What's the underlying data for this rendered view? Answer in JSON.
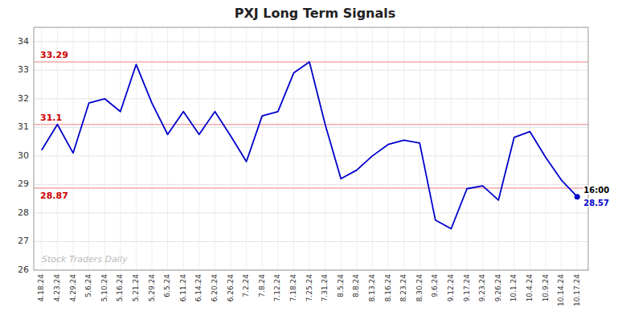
{
  "chart_data": {
    "type": "line",
    "title": "PXJ Long Term Signals",
    "categories": [
      "4.18.24",
      "4.23.24",
      "4.29.24",
      "5.6.24",
      "5.10.24",
      "5.16.24",
      "5.21.24",
      "5.29.24",
      "6.5.24",
      "6.11.24",
      "6.14.24",
      "6.20.24",
      "6.26.24",
      "7.2.24",
      "7.8.24",
      "7.12.24",
      "7.18.24",
      "7.25.24",
      "7.31.24",
      "8.5.24",
      "8.8.24",
      "8.13.24",
      "8.16.24",
      "8.23.24",
      "8.30.24",
      "9.6.24",
      "9.12.24",
      "9.17.24",
      "9.23.24",
      "9.26.24",
      "10.1.24",
      "10.4.24",
      "10.9.24",
      "10.14.24",
      "10.17.24"
    ],
    "values": [
      30.2,
      31.1,
      30.1,
      31.85,
      32.0,
      31.55,
      33.2,
      31.85,
      30.75,
      31.55,
      30.75,
      31.55,
      30.7,
      29.8,
      31.4,
      31.55,
      32.9,
      33.29,
      31.1,
      29.2,
      29.5,
      30.0,
      30.4,
      30.55,
      30.45,
      27.75,
      27.45,
      28.85,
      28.95,
      28.45,
      30.65,
      30.85,
      29.95,
      29.15,
      28.57
    ],
    "color": "#0000cc",
    "ylim": [
      26,
      34.5
    ],
    "yticks": [
      26,
      27,
      28,
      29,
      30,
      31,
      32,
      33,
      34
    ],
    "grid": true,
    "reference_lines": [
      {
        "value": 33.29,
        "label": "33.29",
        "color": "#f5aaaa",
        "label_color": "#cc0000"
      },
      {
        "value": 31.1,
        "label": "31.1",
        "color": "#f5aaaa",
        "label_color": "#cc0000"
      },
      {
        "value": 28.87,
        "label": "28.87",
        "color": "#f5aaaa",
        "label_color": "#cc0000"
      }
    ],
    "end_label": "16:00",
    "watermark": "Stock Traders Daily"
  }
}
